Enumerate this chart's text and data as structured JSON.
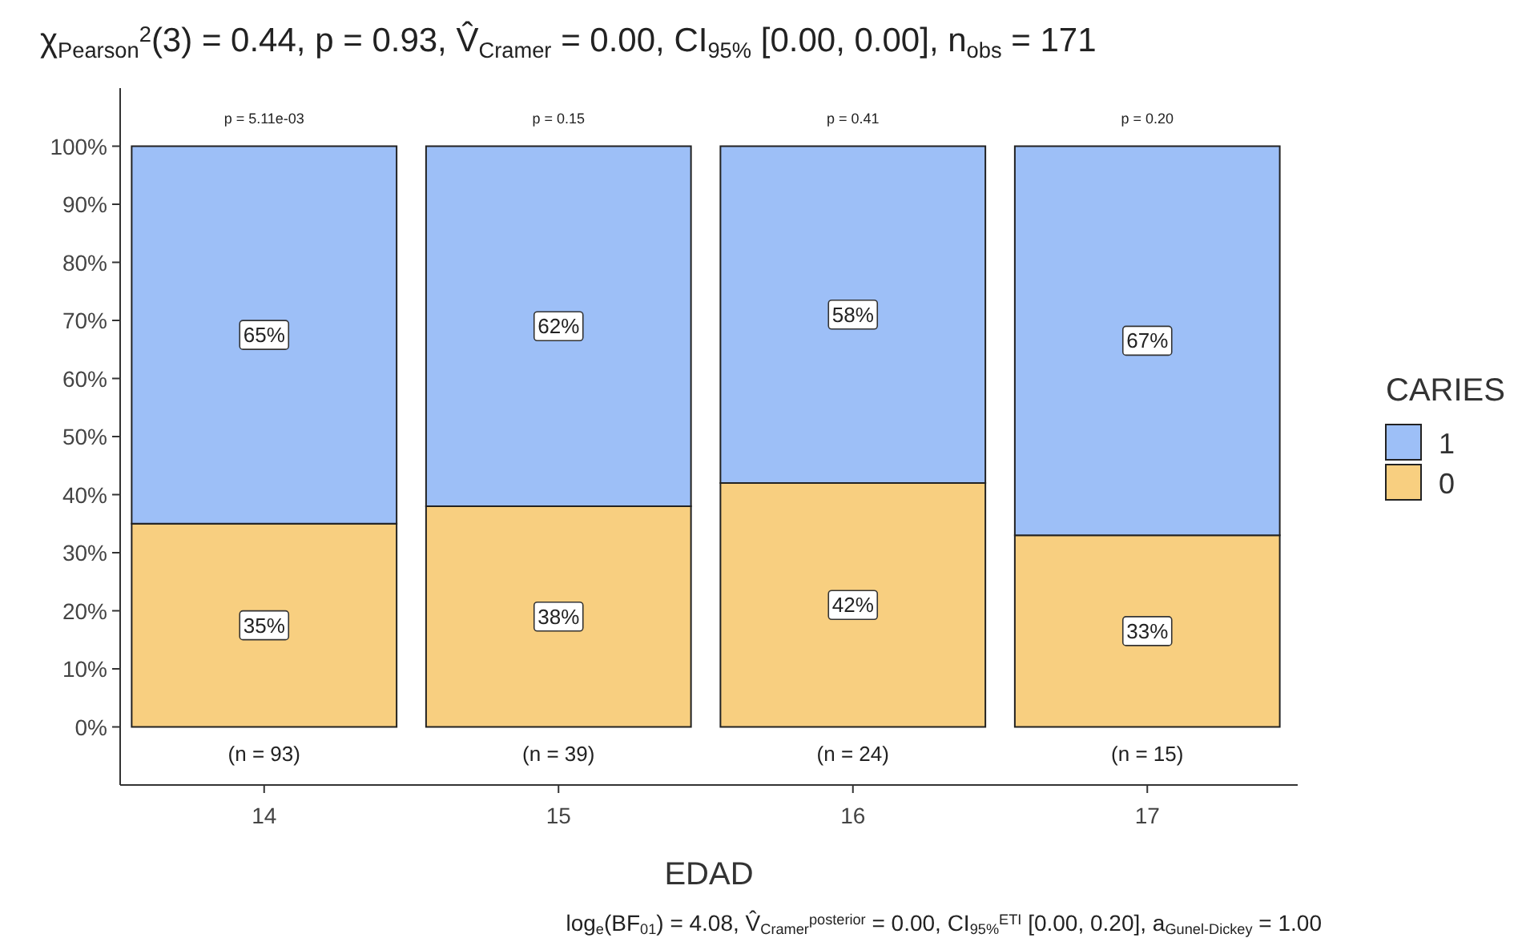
{
  "chart_data": {
    "type": "bar",
    "stacked": true,
    "title": "χ$_{Pearson}$$^{2}$(3) = 0.44, p = 0.93, V̂$_{Cramer}$ = 0.00, CI$_{95%}$ [0.00, 0.00], n$_{obs}$ = 171",
    "xlabel": "EDAD",
    "legend_title": "CARIES",
    "legend": "right",
    "grid": false,
    "categories": [
      "14",
      "15",
      "16",
      "17"
    ],
    "series": [
      {
        "name": "0",
        "color": "#f8cf80",
        "values": [
          35,
          38,
          42,
          33
        ],
        "value_labels": [
          "35%",
          "38%",
          "42%",
          "33%"
        ]
      },
      {
        "name": "1",
        "color": "#9dbff7",
        "values": [
          65,
          62,
          58,
          67
        ],
        "value_labels": [
          "65%",
          "62%",
          "58%",
          "67%"
        ]
      }
    ],
    "ylim": [
      -10,
      110
    ],
    "yticks": [
      {
        "value": 0,
        "label": "0%"
      },
      {
        "value": 10,
        "label": "10%"
      },
      {
        "value": 20,
        "label": "20%"
      },
      {
        "value": 30,
        "label": "30%"
      },
      {
        "value": 40,
        "label": "40%"
      },
      {
        "value": 50,
        "label": "50%"
      },
      {
        "value": 60,
        "label": "60%"
      },
      {
        "value": 70,
        "label": "70%"
      },
      {
        "value": 80,
        "label": "80%"
      },
      {
        "value": 90,
        "label": "90%"
      },
      {
        "value": 100,
        "label": "100%"
      }
    ],
    "annotations": [
      "p = 5.11e-03",
      "p = 0.15",
      "p = 0.41",
      "p = 0.20",
      "(n = 93)",
      "(n = 39)",
      "(n = 24)",
      "(n = 15)",
      "log$_{e}$(BF$_{01}$) = 4.08, V̂$_{Cramer}$$^{posterior}$ = 0.00, CI$_{95%}$$^{ETI}$ [0.00, 0.20], a$_{Gunel-Dickey}$ = 1.00"
    ]
  }
}
